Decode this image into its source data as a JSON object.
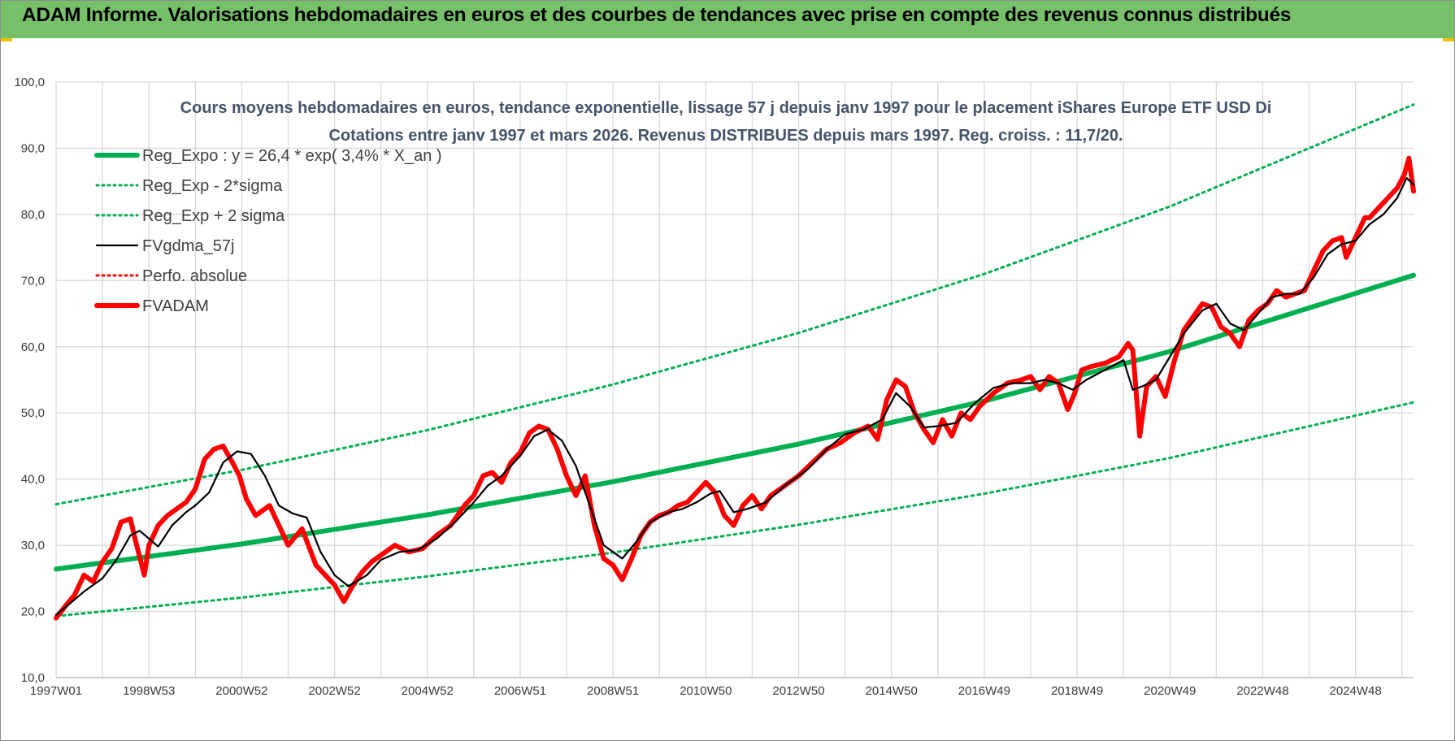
{
  "header": {
    "title": "ADAM Informe. Valorisations hebdomadaires en euros et des courbes de tendances avec prise en compte des revenus connus distribués"
  },
  "colors": {
    "banner": "#77c06a",
    "regression": "#00b050",
    "smoothed": "#000000",
    "price": "#ff0000",
    "grid": "#d9d9d9"
  },
  "chart_data": {
    "type": "line",
    "title_lines": [
      "Cours moyens hebdomadaires en euros, tendance exponentielle, lissage 57 j depuis janv 1997 pour le placement iShares Europe ETF USD Di",
      "Cotations entre janv 1997 et mars 2026. Revenus DISTRIBUES depuis mars 1997. Reg. croiss. : 11,7/20."
    ],
    "xlabel": "",
    "ylabel": "",
    "x_range": [
      1997.0,
      2026.25
    ],
    "ylim": [
      10,
      100
    ],
    "y_ticks": [
      "10,0",
      "20,0",
      "30,0",
      "40,0",
      "50,0",
      "60,0",
      "70,0",
      "80,0",
      "90,0",
      "100,0"
    ],
    "x_ticks": [
      {
        "label": "1997W01",
        "t": 1997.0
      },
      {
        "label": "1998W53",
        "t": 1999.0
      },
      {
        "label": "2000W52",
        "t": 2001.0
      },
      {
        "label": "2002W52",
        "t": 2003.0
      },
      {
        "label": "2004W52",
        "t": 2005.0
      },
      {
        "label": "2006W51",
        "t": 2007.0
      },
      {
        "label": "2008W51",
        "t": 2009.0
      },
      {
        "label": "2010W50",
        "t": 2011.0
      },
      {
        "label": "2012W50",
        "t": 2013.0
      },
      {
        "label": "2014W50",
        "t": 2015.0
      },
      {
        "label": "2016W49",
        "t": 2017.0
      },
      {
        "label": "2018W49",
        "t": 2019.0
      },
      {
        "label": "2020W49",
        "t": 2021.0
      },
      {
        "label": "2022W48",
        "t": 2023.0
      },
      {
        "label": "2024W48",
        "t": 2025.0
      }
    ],
    "grid": true,
    "legend_position": "top-left",
    "series": [
      {
        "name": "Reg_Expo : y = 26,4 * exp( 3,4% *  X_an )",
        "style": "solid-thick",
        "color": "#00b050",
        "x": [
          1997.0,
          2001.0,
          2005.0,
          2009.0,
          2013.0,
          2017.0,
          2021.0,
          2026.25
        ],
        "values": [
          26.4,
          30.2,
          34.6,
          39.6,
          45.3,
          51.8,
          59.3,
          70.8
        ]
      },
      {
        "name": "Reg_Exp - 2*sigma",
        "style": "dotted",
        "color": "#00b050",
        "x": [
          1997.0,
          2001.0,
          2005.0,
          2009.0,
          2013.0,
          2017.0,
          2021.0,
          2026.25
        ],
        "values": [
          19.3,
          22.1,
          25.3,
          28.9,
          33.1,
          37.8,
          43.2,
          51.6
        ]
      },
      {
        "name": "Reg_Exp + 2 sigma",
        "style": "dotted",
        "color": "#00b050",
        "x": [
          1997.0,
          2001.0,
          2005.0,
          2009.0,
          2013.0,
          2017.0,
          2021.0,
          2026.25
        ],
        "values": [
          36.2,
          41.4,
          47.4,
          54.3,
          62.1,
          71.0,
          81.2,
          96.6
        ]
      },
      {
        "name": "FVgdma_57j",
        "style": "solid",
        "color": "#000000",
        "x": [
          1997.0,
          1997.3,
          1997.6,
          1998.0,
          1998.3,
          1998.6,
          1998.8,
          1999.2,
          1999.5,
          1999.8,
          2000.0,
          2000.3,
          2000.6,
          2000.9,
          2001.2,
          2001.5,
          2001.8,
          2002.1,
          2002.4,
          2002.7,
          2003.0,
          2003.3,
          2003.7,
          2004.0,
          2004.4,
          2004.8,
          2005.2,
          2005.6,
          2006.0,
          2006.3,
          2006.6,
          2007.0,
          2007.3,
          2007.6,
          2007.9,
          2008.2,
          2008.5,
          2008.8,
          2009.2,
          2009.5,
          2009.8,
          2010.2,
          2010.5,
          2010.8,
          2011.1,
          2011.3,
          2011.6,
          2011.9,
          2012.3,
          2012.7,
          2013.2,
          2013.6,
          2014.0,
          2014.4,
          2014.8,
          2015.1,
          2015.4,
          2015.7,
          2016.0,
          2016.4,
          2016.8,
          2017.2,
          2017.6,
          2018.0,
          2018.3,
          2018.6,
          2018.9,
          2019.2,
          2019.6,
          2020.0,
          2020.2,
          2020.4,
          2020.7,
          2021.0,
          2021.3,
          2021.7,
          2022.0,
          2022.3,
          2022.6,
          2022.9,
          2023.2,
          2023.5,
          2023.8,
          2024.1,
          2024.4,
          2024.7,
          2025.0,
          2025.3,
          2025.6,
          2025.9,
          2026.1,
          2026.25
        ],
        "values": [
          19.5,
          21.2,
          23.0,
          25.0,
          27.8,
          31.5,
          32.2,
          29.8,
          33.0,
          35.0,
          36.0,
          38.0,
          42.5,
          44.2,
          43.8,
          40.5,
          36.0,
          34.8,
          34.2,
          29.0,
          25.5,
          23.8,
          25.5,
          27.8,
          29.0,
          29.3,
          31.0,
          33.5,
          36.5,
          39.0,
          40.5,
          43.5,
          46.5,
          47.5,
          45.8,
          42.0,
          36.0,
          30.0,
          28.0,
          30.5,
          33.5,
          35.0,
          35.5,
          36.5,
          37.8,
          38.2,
          35.0,
          35.5,
          36.5,
          39.0,
          41.5,
          44.5,
          46.8,
          47.5,
          49.0,
          53.0,
          51.0,
          47.8,
          48.0,
          48.5,
          51.5,
          53.8,
          54.5,
          54.5,
          55.0,
          54.5,
          53.5,
          55.0,
          56.5,
          58.0,
          53.5,
          54.0,
          55.0,
          58.5,
          62.0,
          65.5,
          66.5,
          63.5,
          62.5,
          65.0,
          67.5,
          68.0,
          68.0,
          70.5,
          74.0,
          75.5,
          76.0,
          78.5,
          80.0,
          82.5,
          85.5,
          84.5
        ]
      },
      {
        "name": "Perfo. absolue",
        "style": "dotted",
        "color": "#ff0000",
        "x": [],
        "values": []
      },
      {
        "name": "FVADAM",
        "style": "solid-thick",
        "color": "#ff0000",
        "x": [
          1997.0,
          1997.2,
          1997.4,
          1997.6,
          1997.8,
          1998.0,
          1998.2,
          1998.4,
          1998.6,
          1998.7,
          1998.9,
          1999.0,
          1999.2,
          1999.4,
          1999.6,
          1999.8,
          2000.0,
          2000.2,
          2000.4,
          2000.6,
          2000.8,
          2000.95,
          2001.1,
          2001.3,
          2001.6,
          2001.8,
          2002.0,
          2002.3,
          2002.6,
          2002.8,
          2003.0,
          2003.2,
          2003.4,
          2003.6,
          2003.8,
          2004.0,
          2004.3,
          2004.6,
          2004.9,
          2005.2,
          2005.5,
          2005.8,
          2006.0,
          2006.2,
          2006.4,
          2006.6,
          2006.8,
          2007.0,
          2007.2,
          2007.4,
          2007.6,
          2007.8,
          2008.0,
          2008.2,
          2008.4,
          2008.6,
          2008.8,
          2009.0,
          2009.2,
          2009.4,
          2009.6,
          2009.8,
          2010.0,
          2010.2,
          2010.4,
          2010.6,
          2010.8,
          2011.0,
          2011.2,
          2011.4,
          2011.6,
          2011.8,
          2012.0,
          2012.2,
          2012.4,
          2012.6,
          2012.8,
          2013.0,
          2013.3,
          2013.6,
          2013.9,
          2014.2,
          2014.5,
          2014.7,
          2014.9,
          2015.1,
          2015.3,
          2015.5,
          2015.7,
          2015.9,
          2016.1,
          2016.3,
          2016.5,
          2016.7,
          2016.9,
          2017.2,
          2017.5,
          2017.8,
          2018.0,
          2018.2,
          2018.4,
          2018.6,
          2018.8,
          2018.95,
          2019.1,
          2019.3,
          2019.6,
          2019.9,
          2020.1,
          2020.2,
          2020.35,
          2020.5,
          2020.7,
          2020.9,
          2021.1,
          2021.3,
          2021.5,
          2021.7,
          2021.9,
          2022.1,
          2022.3,
          2022.5,
          2022.7,
          2022.9,
          2023.1,
          2023.3,
          2023.5,
          2023.7,
          2023.9,
          2024.1,
          2024.3,
          2024.5,
          2024.7,
          2024.8,
          2025.0,
          2025.2,
          2025.3,
          2025.5,
          2025.7,
          2025.9,
          2026.05,
          2026.15,
          2026.25
        ],
        "values": [
          19.0,
          20.8,
          22.5,
          25.5,
          24.5,
          27.5,
          29.5,
          33.5,
          34.0,
          31.0,
          25.5,
          30.0,
          33.0,
          34.5,
          35.5,
          36.5,
          38.5,
          43.0,
          44.5,
          45.0,
          42.5,
          40.5,
          37.0,
          34.5,
          36.0,
          33.0,
          30.0,
          32.5,
          27.0,
          25.5,
          24.0,
          21.5,
          24.0,
          26.0,
          27.5,
          28.5,
          30.0,
          29.0,
          29.5,
          31.5,
          33.0,
          36.0,
          37.5,
          40.5,
          41.0,
          39.5,
          42.5,
          44.0,
          47.0,
          48.0,
          47.5,
          44.5,
          40.5,
          37.5,
          40.5,
          33.0,
          28.0,
          27.0,
          24.8,
          28.0,
          31.5,
          33.5,
          34.5,
          35.0,
          36.0,
          36.5,
          38.0,
          39.5,
          38.0,
          34.5,
          33.0,
          36.0,
          37.5,
          35.5,
          37.5,
          38.5,
          39.5,
          40.5,
          42.5,
          44.5,
          45.5,
          47.0,
          48.0,
          46.0,
          52.0,
          55.0,
          54.0,
          50.0,
          47.5,
          45.5,
          49.0,
          46.5,
          50.0,
          49.0,
          51.0,
          53.0,
          54.5,
          55.0,
          55.5,
          53.5,
          55.5,
          54.5,
          50.5,
          53.0,
          56.5,
          57.0,
          57.5,
          58.5,
          60.5,
          59.5,
          46.5,
          54.0,
          55.5,
          52.5,
          58.0,
          62.5,
          64.5,
          66.5,
          66.0,
          63.0,
          62.0,
          60.0,
          64.0,
          65.5,
          66.5,
          68.5,
          67.5,
          68.0,
          68.5,
          71.5,
          74.5,
          76.0,
          76.5,
          73.5,
          76.5,
          79.5,
          79.5,
          81.0,
          82.5,
          84.0,
          86.0,
          88.5,
          83.5
        ]
      }
    ]
  }
}
